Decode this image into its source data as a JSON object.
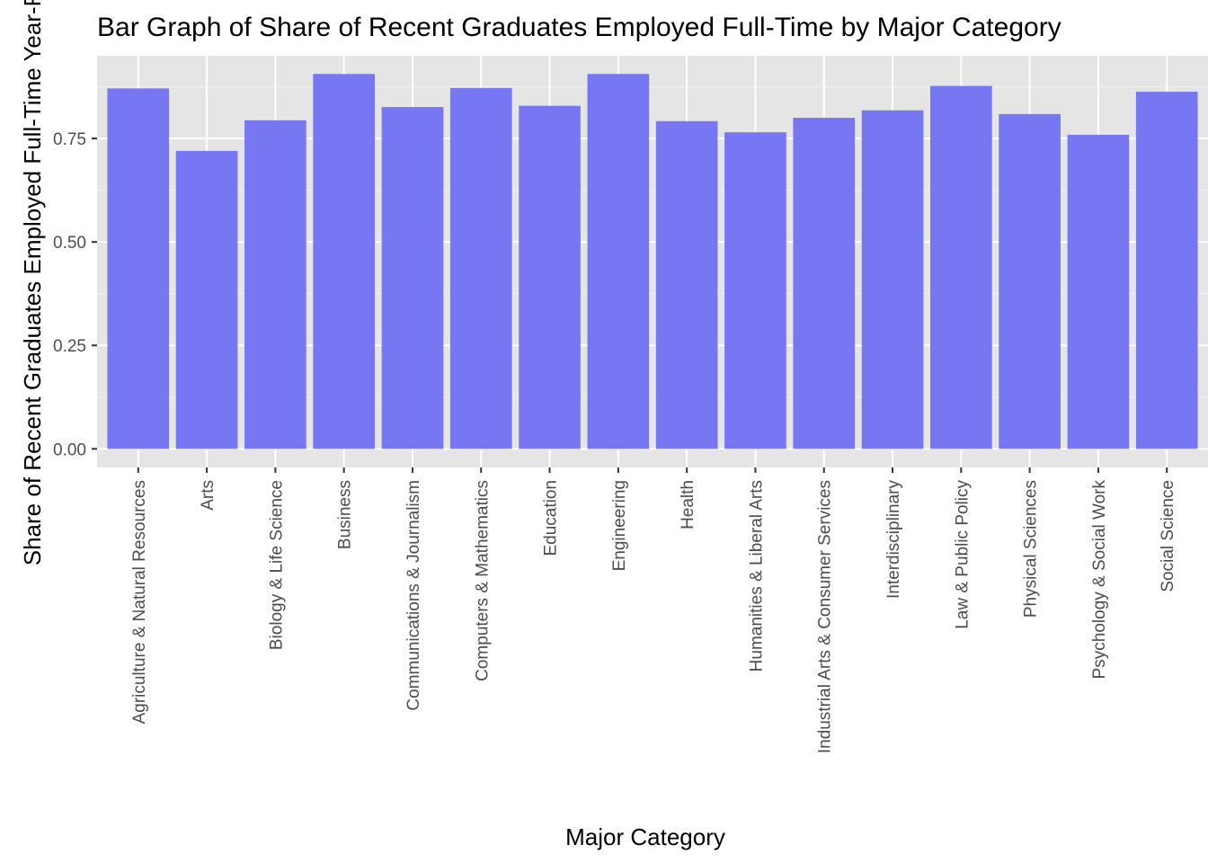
{
  "chart_data": {
    "type": "bar",
    "title": "Bar Graph of Share of Recent Graduates Employed Full-Time by Major Category",
    "xlabel": "Major Category",
    "ylabel": "Share of Recent Graduates Employed Full-Time Year-Round",
    "categories": [
      "Agriculture & Natural Resources",
      "Arts",
      "Biology & Life Science",
      "Business",
      "Communications & Journalism",
      "Computers & Mathematics",
      "Education",
      "Engineering",
      "Health",
      "Humanities & Liberal Arts",
      "Industrial Arts & Consumer Services",
      "Interdisciplinary",
      "Law & Public Policy",
      "Physical Sciences",
      "Psychology & Social Work",
      "Social Science"
    ],
    "values": [
      0.871,
      0.72,
      0.794,
      0.906,
      0.826,
      0.872,
      0.829,
      0.906,
      0.792,
      0.765,
      0.8,
      0.818,
      0.877,
      0.809,
      0.759,
      0.863
    ],
    "yticks": [
      0.0,
      0.25,
      0.5,
      0.75
    ],
    "ytick_labels": [
      "0.00",
      "0.25",
      "0.50",
      "0.75"
    ],
    "ylim": [
      -0.045,
      0.95
    ],
    "grid": true,
    "legend": "none",
    "colors": {
      "bar": "#7373F3",
      "panel": "#E5E5E5",
      "grid": "#FFFFFF",
      "text": "#4D4D4D",
      "title": "#000000"
    }
  }
}
